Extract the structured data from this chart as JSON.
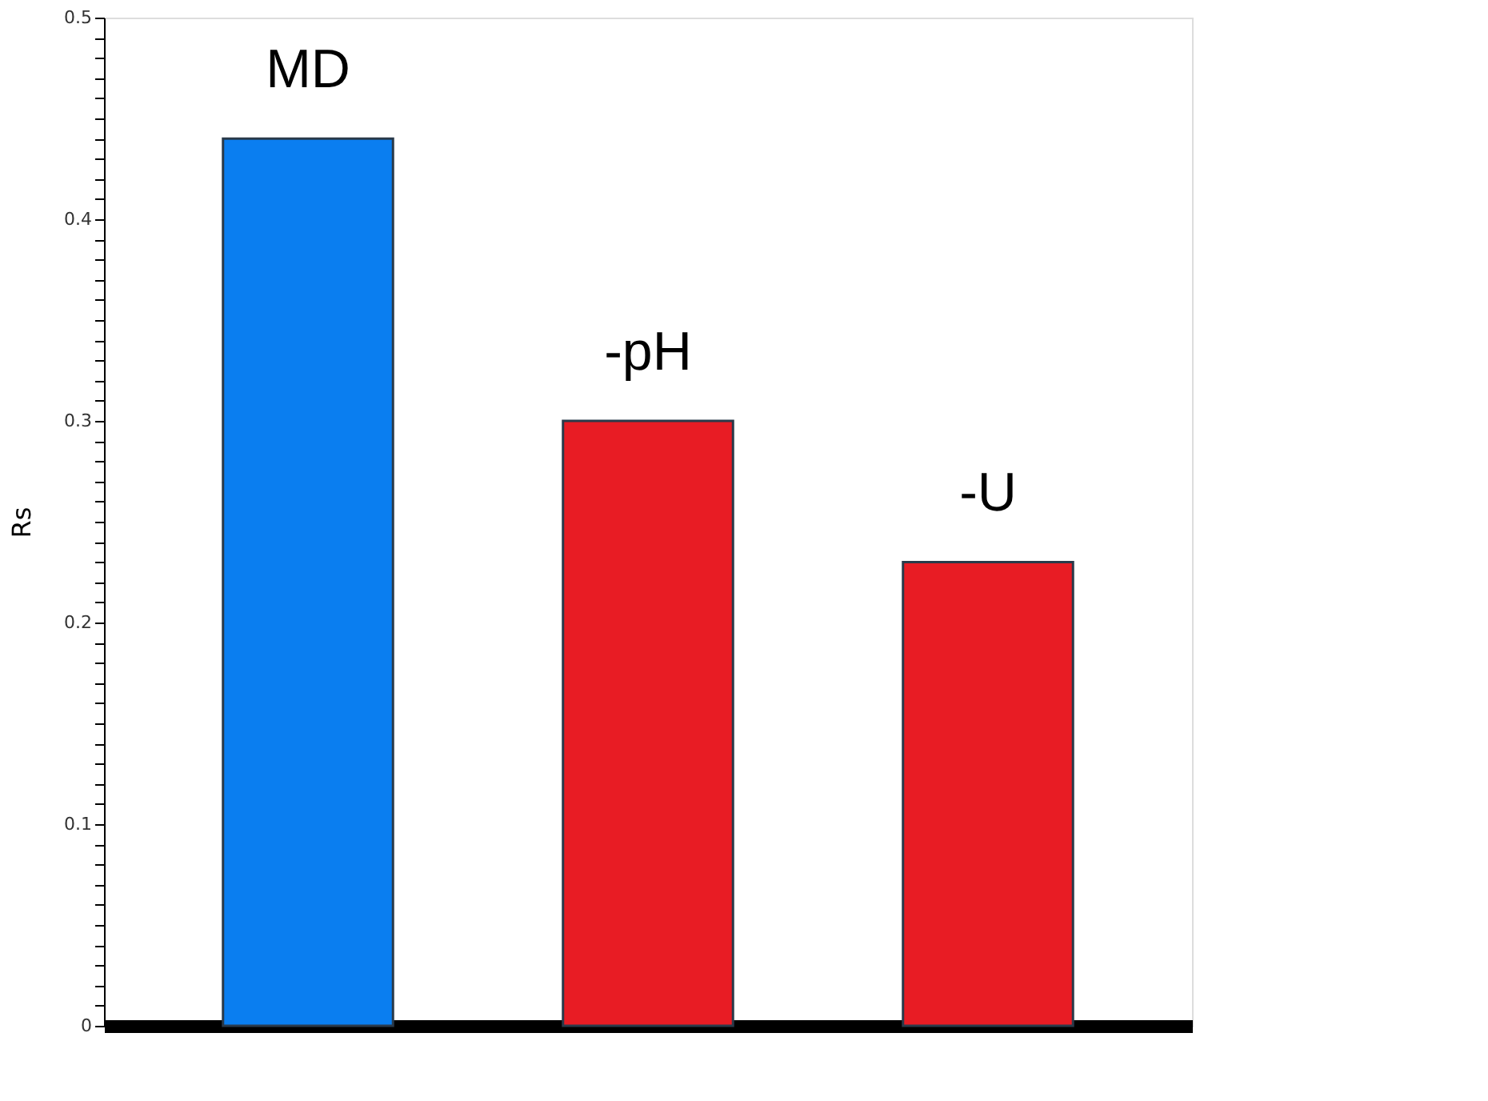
{
  "chart_data": {
    "type": "bar",
    "ylabel": "Rs",
    "categories": [
      "MD",
      "-pH",
      "-U"
    ],
    "values": [
      0.44,
      0.3,
      0.23
    ],
    "colors": [
      "#0a7ef0",
      "#e81c24",
      "#e81c24"
    ],
    "ylim": [
      0,
      0.5
    ],
    "yticks": [
      0,
      {
        "value": 0.01,
        "label": null
      },
      {
        "value": 0.02,
        "label": null
      },
      {
        "value": 0.03,
        "label": null
      },
      {
        "value": 0.04,
        "label": null
      },
      {
        "value": 0.05,
        "label": null
      },
      {
        "value": 0.06,
        "label": null
      },
      {
        "value": 0.07,
        "label": null
      },
      {
        "value": 0.08,
        "label": null
      },
      {
        "value": 0.09,
        "label": null
      },
      0.1,
      {
        "value": 0.11,
        "label": null
      },
      {
        "value": 0.12,
        "label": null
      },
      {
        "value": 0.13,
        "label": null
      },
      {
        "value": 0.14,
        "label": null
      },
      {
        "value": 0.15,
        "label": null
      },
      {
        "value": 0.16,
        "label": null
      },
      {
        "value": 0.17,
        "label": null
      },
      {
        "value": 0.18,
        "label": null
      },
      {
        "value": 0.19,
        "label": null
      },
      0.2,
      {
        "value": 0.21,
        "label": null
      },
      {
        "value": 0.22,
        "label": null
      },
      {
        "value": 0.23,
        "label": null
      },
      {
        "value": 0.24,
        "label": null
      },
      {
        "value": 0.25,
        "label": null
      },
      {
        "value": 0.26,
        "label": null
      },
      {
        "value": 0.27,
        "label": null
      },
      {
        "value": 0.28,
        "label": null
      },
      {
        "value": 0.29,
        "label": null
      },
      0.3,
      {
        "value": 0.31,
        "label": null
      },
      {
        "value": 0.32,
        "label": null
      },
      {
        "value": 0.33,
        "label": null
      },
      {
        "value": 0.34,
        "label": null
      },
      {
        "value": 0.35,
        "label": null
      },
      {
        "value": 0.36,
        "label": null
      },
      {
        "value": 0.37,
        "label": null
      },
      {
        "value": 0.38,
        "label": null
      },
      {
        "value": 0.39,
        "label": null
      },
      0.4,
      {
        "value": 0.41,
        "label": null
      },
      {
        "value": 0.42,
        "label": null
      },
      {
        "value": 0.43,
        "label": null
      },
      {
        "value": 0.44,
        "label": null
      },
      {
        "value": 0.45,
        "label": null
      },
      {
        "value": 0.46,
        "label": null
      },
      {
        "value": 0.47,
        "label": null
      },
      {
        "value": 0.48,
        "label": null
      },
      {
        "value": 0.49,
        "label": null
      },
      0.5
    ],
    "grid": false
  }
}
